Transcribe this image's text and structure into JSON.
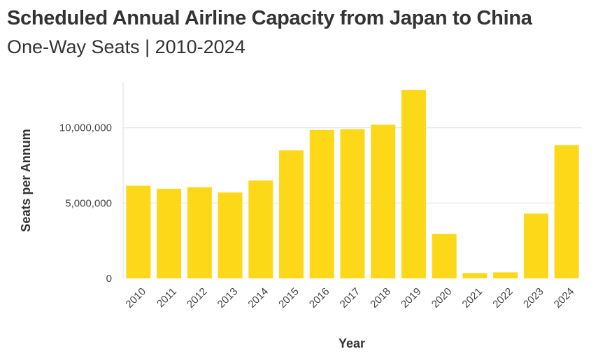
{
  "chart_data": {
    "type": "bar",
    "title": "Scheduled Annual Airline Capacity from Japan to China",
    "subtitle": "One-Way Seats | 2010-2024",
    "xlabel": "Year",
    "ylabel": "Seats per Annum",
    "categories": [
      "2010",
      "2011",
      "2012",
      "2013",
      "2014",
      "2015",
      "2016",
      "2017",
      "2018",
      "2019",
      "2020",
      "2021",
      "2022",
      "2023",
      "2024"
    ],
    "values": [
      6150000,
      5950000,
      6050000,
      5700000,
      6500000,
      8500000,
      9850000,
      9900000,
      10200000,
      12500000,
      2950000,
      350000,
      400000,
      4300000,
      8850000
    ],
    "ylim": [
      0,
      13000000
    ],
    "yticks": [
      0,
      5000000,
      10000000
    ],
    "ytick_labels": [
      "0",
      "5,000,000",
      "10,000,000"
    ],
    "grid": true,
    "bar_color": "#FDD819"
  }
}
